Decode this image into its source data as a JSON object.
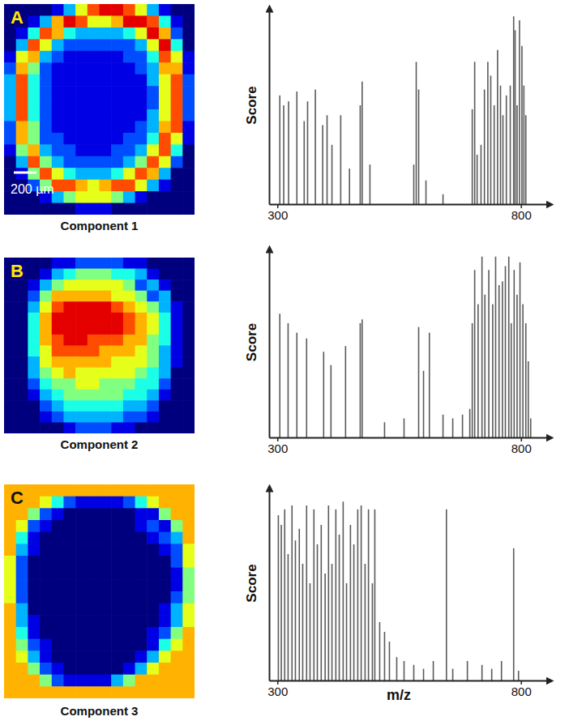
{
  "chart_data": [
    {
      "type": "heatmap",
      "label": "A",
      "title": "Component 1",
      "scale_bar": "200 µm",
      "zlim": [
        0,
        10
      ],
      "tick_labels": false,
      "cells": [
        [
          0,
          0,
          0,
          0,
          1,
          3,
          6,
          8,
          9,
          9,
          8,
          6,
          3,
          1,
          0,
          0
        ],
        [
          0,
          0,
          1,
          3,
          7,
          9,
          8,
          6,
          6,
          7,
          9,
          9,
          8,
          4,
          1,
          0
        ],
        [
          0,
          1,
          4,
          8,
          7,
          4,
          3,
          3,
          3,
          3,
          4,
          6,
          9,
          7,
          2,
          0
        ],
        [
          0,
          3,
          8,
          6,
          3,
          2,
          2,
          2,
          2,
          2,
          2,
          3,
          6,
          9,
          4,
          0
        ],
        [
          1,
          6,
          7,
          3,
          2,
          1,
          1,
          1,
          1,
          1,
          2,
          2,
          4,
          8,
          6,
          1
        ],
        [
          2,
          7,
          5,
          2,
          1,
          1,
          1,
          1,
          1,
          1,
          1,
          2,
          3,
          7,
          7,
          1
        ],
        [
          3,
          8,
          4,
          2,
          1,
          1,
          1,
          1,
          1,
          1,
          1,
          1,
          3,
          6,
          8,
          2
        ],
        [
          3,
          8,
          4,
          2,
          1,
          1,
          1,
          1,
          1,
          1,
          1,
          1,
          2,
          6,
          8,
          2
        ],
        [
          3,
          8,
          4,
          2,
          1,
          1,
          1,
          1,
          1,
          1,
          1,
          1,
          2,
          6,
          8,
          2
        ],
        [
          3,
          8,
          4,
          2,
          1,
          1,
          1,
          1,
          1,
          1,
          1,
          1,
          3,
          6,
          8,
          2
        ],
        [
          2,
          7,
          5,
          2,
          1,
          1,
          1,
          1,
          1,
          1,
          1,
          2,
          3,
          7,
          8,
          1
        ],
        [
          2,
          7,
          5,
          2,
          2,
          1,
          1,
          1,
          1,
          1,
          2,
          2,
          4,
          8,
          6,
          1
        ],
        [
          1,
          5,
          7,
          3,
          2,
          2,
          1,
          1,
          1,
          2,
          2,
          3,
          6,
          8,
          4,
          0
        ],
        [
          0,
          3,
          8,
          5,
          3,
          2,
          2,
          2,
          2,
          2,
          3,
          5,
          8,
          6,
          2,
          0
        ],
        [
          0,
          1,
          5,
          8,
          6,
          4,
          3,
          3,
          3,
          4,
          6,
          8,
          7,
          3,
          0,
          0
        ],
        [
          0,
          0,
          2,
          5,
          8,
          8,
          7,
          6,
          7,
          8,
          8,
          6,
          3,
          1,
          0,
          0
        ],
        [
          0,
          0,
          0,
          1,
          3,
          5,
          6,
          6,
          6,
          5,
          3,
          1,
          0,
          0,
          0,
          0
        ],
        [
          0,
          0,
          0,
          0,
          0,
          0,
          1,
          1,
          1,
          0,
          0,
          0,
          0,
          0,
          0,
          0
        ]
      ]
    },
    {
      "type": "bar",
      "ylabel": "Score",
      "color": "#5a5a5a",
      "tick_labels": "x",
      "xlim": [
        283,
        862
      ],
      "ylim": [
        0,
        1
      ],
      "xticks": [
        300,
        800
      ],
      "x": [
        305,
        313,
        323,
        340,
        355,
        362,
        378,
        393,
        402,
        412,
        430,
        448,
        470,
        474,
        490,
        580,
        585,
        590,
        605,
        640,
        700,
        705,
        710,
        718,
        725,
        732,
        738,
        745,
        752,
        758,
        763,
        770,
        778,
        785,
        788,
        792,
        797,
        802,
        806,
        810
      ],
      "values": [
        0.55,
        0.5,
        0.52,
        0.57,
        0.42,
        0.52,
        0.58,
        0.4,
        0.45,
        0.3,
        0.45,
        0.18,
        0.5,
        0.62,
        0.2,
        0.2,
        0.72,
        0.58,
        0.12,
        0.05,
        0.48,
        0.72,
        0.25,
        0.3,
        0.58,
        0.72,
        0.65,
        0.5,
        0.78,
        0.6,
        0.45,
        0.55,
        0.6,
        0.95,
        0.88,
        0.5,
        0.93,
        0.8,
        0.6,
        0.45
      ]
    },
    {
      "type": "heatmap",
      "label": "B",
      "title": "Component 2",
      "zlim": [
        0,
        10
      ],
      "tick_labels": false,
      "cells": [
        [
          0,
          0,
          0,
          0,
          1,
          1,
          2,
          2,
          2,
          2,
          1,
          1,
          0,
          0,
          0,
          0
        ],
        [
          0,
          0,
          0,
          1,
          3,
          4,
          5,
          5,
          5,
          4,
          4,
          3,
          1,
          0,
          0,
          0
        ],
        [
          0,
          0,
          1,
          3,
          5,
          6,
          6,
          6,
          6,
          6,
          5,
          2,
          3,
          1,
          0,
          0
        ],
        [
          0,
          0,
          2,
          5,
          7,
          7,
          7,
          7,
          7,
          6,
          6,
          5,
          2,
          3,
          0,
          0
        ],
        [
          0,
          0,
          3,
          6,
          8,
          9,
          9,
          9,
          9,
          8,
          7,
          6,
          5,
          3,
          1,
          0
        ],
        [
          0,
          0,
          4,
          7,
          9,
          9,
          9,
          9,
          9,
          9,
          8,
          7,
          6,
          4,
          1,
          0
        ],
        [
          0,
          0,
          4,
          7,
          9,
          9,
          9,
          9,
          9,
          9,
          8,
          7,
          6,
          4,
          1,
          0
        ],
        [
          0,
          0,
          4,
          7,
          8,
          9,
          9,
          8,
          8,
          8,
          7,
          7,
          5,
          4,
          1,
          0
        ],
        [
          0,
          0,
          4,
          6,
          8,
          8,
          8,
          8,
          7,
          7,
          7,
          6,
          5,
          3,
          1,
          0
        ],
        [
          0,
          0,
          3,
          6,
          7,
          7,
          7,
          7,
          7,
          6,
          6,
          6,
          5,
          3,
          1,
          0
        ],
        [
          0,
          0,
          3,
          5,
          6,
          7,
          6,
          6,
          6,
          6,
          6,
          5,
          4,
          3,
          0,
          0
        ],
        [
          0,
          0,
          2,
          4,
          5,
          5,
          6,
          6,
          5,
          5,
          5,
          4,
          4,
          2,
          0,
          0
        ],
        [
          0,
          0,
          1,
          3,
          4,
          5,
          5,
          5,
          5,
          5,
          4,
          4,
          3,
          1,
          0,
          0
        ],
        [
          0,
          0,
          0,
          2,
          3,
          4,
          4,
          4,
          4,
          4,
          3,
          3,
          2,
          0,
          0,
          0
        ],
        [
          0,
          0,
          0,
          1,
          2,
          3,
          3,
          3,
          3,
          3,
          2,
          2,
          1,
          0,
          0,
          0
        ],
        [
          0,
          0,
          0,
          0,
          0,
          1,
          2,
          2,
          2,
          1,
          1,
          0,
          0,
          0,
          0,
          0
        ]
      ]
    },
    {
      "type": "bar",
      "ylabel": "Score",
      "color": "#5a5a5a",
      "tick_labels": "x",
      "xlim": [
        283,
        862
      ],
      "ylim": [
        0,
        1
      ],
      "xticks": [
        300,
        800
      ],
      "x": [
        305,
        322,
        340,
        360,
        395,
        410,
        440,
        470,
        474,
        520,
        560,
        590,
        600,
        612,
        640,
        660,
        680,
        695,
        700,
        705,
        712,
        720,
        726,
        734,
        742,
        748,
        755,
        762,
        768,
        775,
        780,
        786,
        792,
        798,
        804,
        810,
        815,
        820
      ],
      "values": [
        0.65,
        0.6,
        0.55,
        0.52,
        0.45,
        0.38,
        0.48,
        0.6,
        0.62,
        0.08,
        0.1,
        0.58,
        0.35,
        0.55,
        0.12,
        0.1,
        0.12,
        0.15,
        0.6,
        0.88,
        0.7,
        0.95,
        0.75,
        0.88,
        0.7,
        0.95,
        0.8,
        0.82,
        0.9,
        0.95,
        0.6,
        0.88,
        0.75,
        0.92,
        0.7,
        0.6,
        0.4,
        0.1
      ]
    },
    {
      "type": "heatmap",
      "label": "C",
      "title": "Component 3",
      "zlim": [
        0,
        10
      ],
      "tick_labels": false,
      "cells": [
        [
          7,
          7,
          7,
          7,
          7,
          7,
          7,
          7,
          7,
          7,
          7,
          7,
          7,
          7,
          7,
          7
        ],
        [
          7,
          7,
          7,
          6,
          4,
          2,
          1,
          1,
          1,
          1,
          2,
          4,
          6,
          7,
          7,
          7
        ],
        [
          7,
          7,
          5,
          2,
          1,
          0,
          0,
          0,
          0,
          0,
          0,
          1,
          1,
          5,
          7,
          7
        ],
        [
          7,
          6,
          2,
          1,
          0,
          0,
          0,
          0,
          0,
          0,
          0,
          1,
          2,
          1,
          5,
          7
        ],
        [
          7,
          4,
          1,
          0,
          0,
          0,
          0,
          0,
          0,
          0,
          0,
          0,
          1,
          2,
          3,
          7
        ],
        [
          7,
          3,
          1,
          0,
          0,
          0,
          0,
          0,
          0,
          0,
          0,
          0,
          0,
          1,
          2,
          6
        ],
        [
          6,
          2,
          0,
          0,
          0,
          0,
          0,
          0,
          0,
          0,
          0,
          0,
          0,
          0,
          2,
          6
        ],
        [
          6,
          2,
          0,
          0,
          0,
          0,
          0,
          0,
          0,
          0,
          0,
          0,
          0,
          0,
          1,
          5
        ],
        [
          6,
          2,
          0,
          0,
          0,
          0,
          0,
          0,
          0,
          0,
          0,
          0,
          0,
          0,
          1,
          5
        ],
        [
          6,
          2,
          0,
          0,
          0,
          0,
          0,
          0,
          0,
          0,
          0,
          0,
          0,
          0,
          2,
          5
        ],
        [
          7,
          3,
          0,
          0,
          0,
          0,
          0,
          0,
          0,
          0,
          0,
          0,
          0,
          1,
          3,
          6
        ],
        [
          7,
          3,
          1,
          0,
          0,
          0,
          0,
          0,
          0,
          0,
          0,
          0,
          0,
          1,
          3,
          6
        ],
        [
          7,
          4,
          1,
          0,
          0,
          0,
          0,
          0,
          0,
          0,
          0,
          0,
          1,
          2,
          5,
          7
        ],
        [
          7,
          5,
          2,
          1,
          0,
          0,
          0,
          0,
          0,
          0,
          0,
          0,
          1,
          4,
          6,
          7
        ],
        [
          7,
          6,
          3,
          1,
          0,
          0,
          0,
          0,
          0,
          0,
          0,
          1,
          3,
          6,
          7,
          7
        ],
        [
          7,
          7,
          5,
          2,
          1,
          0,
          0,
          0,
          0,
          0,
          1,
          3,
          6,
          7,
          7,
          7
        ],
        [
          7,
          7,
          7,
          5,
          2,
          1,
          1,
          1,
          1,
          3,
          5,
          7,
          7,
          7,
          7,
          7
        ],
        [
          7,
          7,
          7,
          7,
          7,
          7,
          7,
          7,
          7,
          7,
          7,
          7,
          7,
          7,
          7,
          7
        ]
      ]
    },
    {
      "type": "bar",
      "ylabel": "Score",
      "xlabel": "m/z",
      "color": "#5a5a5a",
      "tick_labels": "x",
      "xlim": [
        283,
        862
      ],
      "ylim": [
        0,
        1
      ],
      "xticks": [
        300,
        800
      ],
      "x": [
        302,
        308,
        315,
        322,
        330,
        337,
        345,
        352,
        360,
        367,
        375,
        382,
        390,
        398,
        405,
        412,
        420,
        427,
        435,
        442,
        450,
        457,
        465,
        472,
        480,
        487,
        495,
        500,
        510,
        520,
        530,
        545,
        560,
        580,
        600,
        620,
        647,
        660,
        690,
        720,
        740,
        760,
        785,
        795
      ],
      "values": [
        0.85,
        0.8,
        0.88,
        0.65,
        0.9,
        0.72,
        0.78,
        0.6,
        0.9,
        0.5,
        0.88,
        0.7,
        0.8,
        0.55,
        0.9,
        0.6,
        0.88,
        0.75,
        0.92,
        0.5,
        0.8,
        0.7,
        0.88,
        0.9,
        0.6,
        0.88,
        0.5,
        0.88,
        0.3,
        0.25,
        0.2,
        0.12,
        0.1,
        0.08,
        0.06,
        0.1,
        0.88,
        0.06,
        0.1,
        0.08,
        0.06,
        0.1,
        0.68,
        0.05
      ]
    }
  ]
}
